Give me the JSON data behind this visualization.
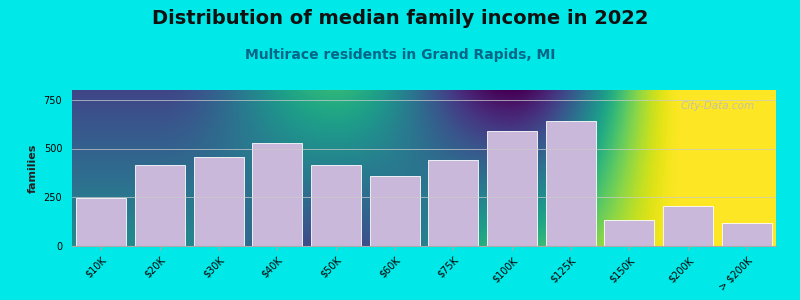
{
  "title": "Distribution of median family income in 2022",
  "subtitle": "Multirace residents in Grand Rapids, MI",
  "ylabel": "families",
  "categories": [
    "$10K",
    "$20K",
    "$30K",
    "$40K",
    "$50K",
    "$60K",
    "$75K",
    "$100K",
    "$125K",
    "$150K",
    "$200K",
    "> $200K"
  ],
  "values": [
    245,
    415,
    455,
    530,
    415,
    360,
    440,
    590,
    640,
    135,
    205,
    120
  ],
  "bar_color": "#c9b8d9",
  "bar_edge_color": "#ffffff",
  "background_outer": "#00e8e8",
  "yticks": [
    0,
    250,
    500,
    750
  ],
  "ylim": [
    0,
    800
  ],
  "title_fontsize": 14,
  "subtitle_fontsize": 10,
  "ylabel_fontsize": 8,
  "tick_fontsize": 7,
  "watermark_text": "City-Data.com",
  "bg_top_color": "#e8f5e2",
  "bg_bottom_color": "#f0e8f5"
}
